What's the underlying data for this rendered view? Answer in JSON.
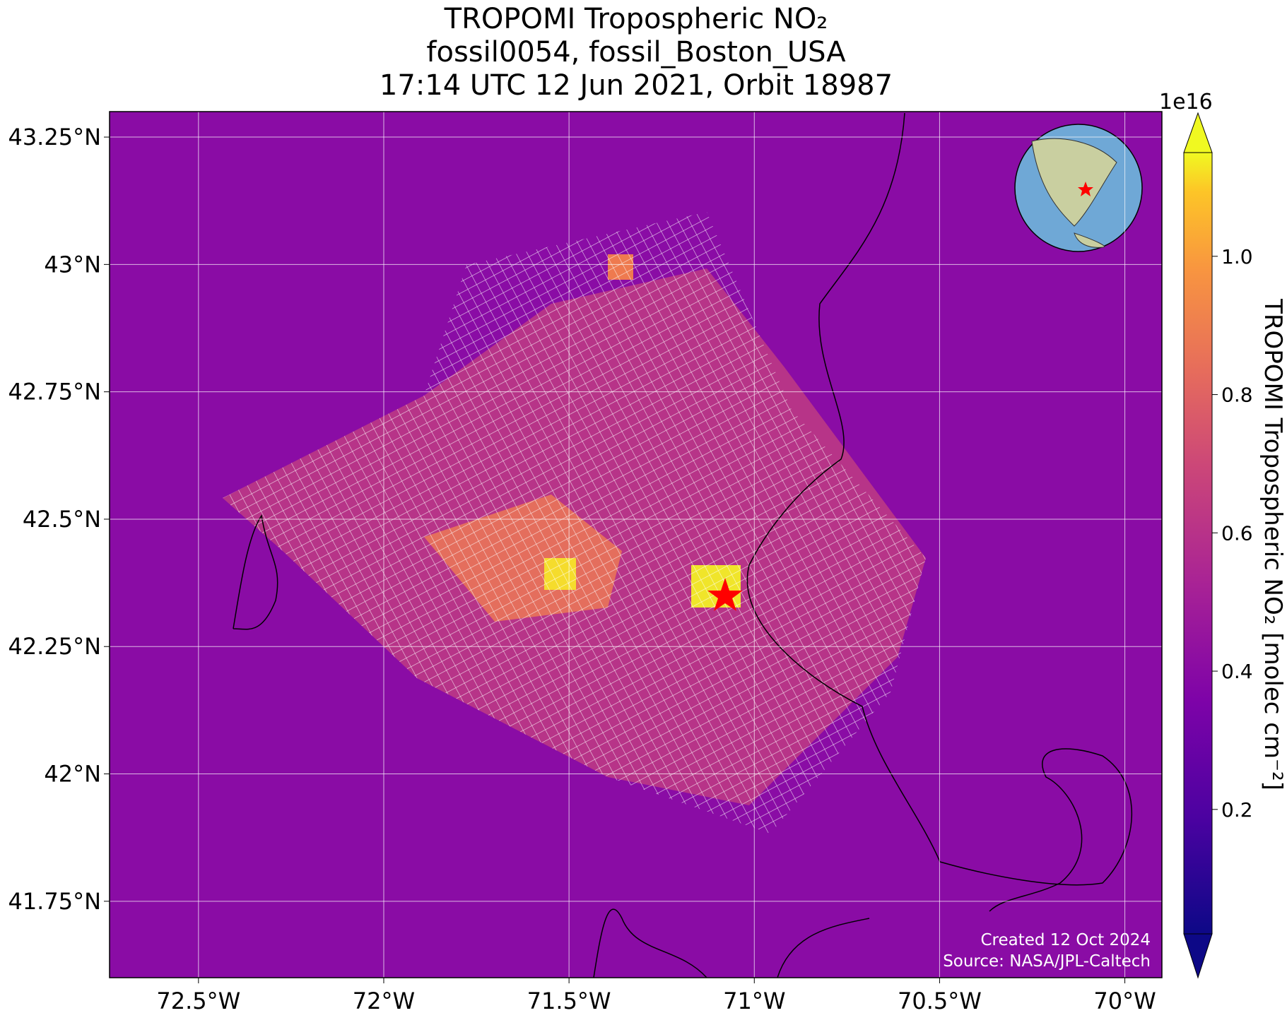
{
  "chart_data": {
    "type": "map",
    "title": [
      "TROPOMI Tropospheric NO₂",
      "fossil0054, fossil_Boston_USA",
      "17:14 UTC 12 Jun 2021, Orbit 18987"
    ],
    "xlim": [
      -72.74,
      -69.9
    ],
    "ylim": [
      41.6,
      43.3
    ],
    "xticks": [
      {
        "value": -72.5,
        "label": "72.5°W"
      },
      {
        "value": -72,
        "label": "72°W"
      },
      {
        "value": -71.5,
        "label": "71.5°W"
      },
      {
        "value": -71,
        "label": "71°W"
      },
      {
        "value": -70.5,
        "label": "70.5°W"
      },
      {
        "value": -70,
        "label": "70°W"
      }
    ],
    "yticks": [
      {
        "value": 41.75,
        "label": "41.75°N"
      },
      {
        "value": 42,
        "label": "42°N"
      },
      {
        "value": 42.25,
        "label": "42.25°N"
      },
      {
        "value": 42.5,
        "label": "42.5°N"
      },
      {
        "value": 42.75,
        "label": "42.75°N"
      },
      {
        "value": 43,
        "label": "43°N"
      },
      {
        "value": 43.25,
        "label": "43.25°N"
      }
    ],
    "grid": true,
    "colorbar": {
      "label": "TROPOMI Tropospheric NO₂ [molec cm⁻²]",
      "offset_label": "1e16",
      "lim": [
        0.02,
        1.15
      ],
      "ticks": [
        0.2,
        0.4,
        0.6,
        0.8,
        1.0
      ],
      "colormap": "plasma"
    },
    "footer": [
      "Created 12 Oct 2024",
      "Source: NASA/JPL-Caltech"
    ]
  }
}
